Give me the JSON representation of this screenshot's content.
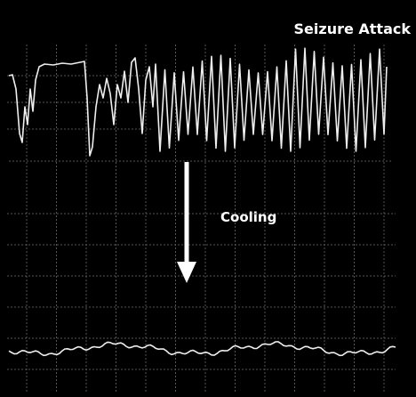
{
  "labels": {
    "top": "Seizure Attack",
    "bottom": "Cooling"
  }
}
